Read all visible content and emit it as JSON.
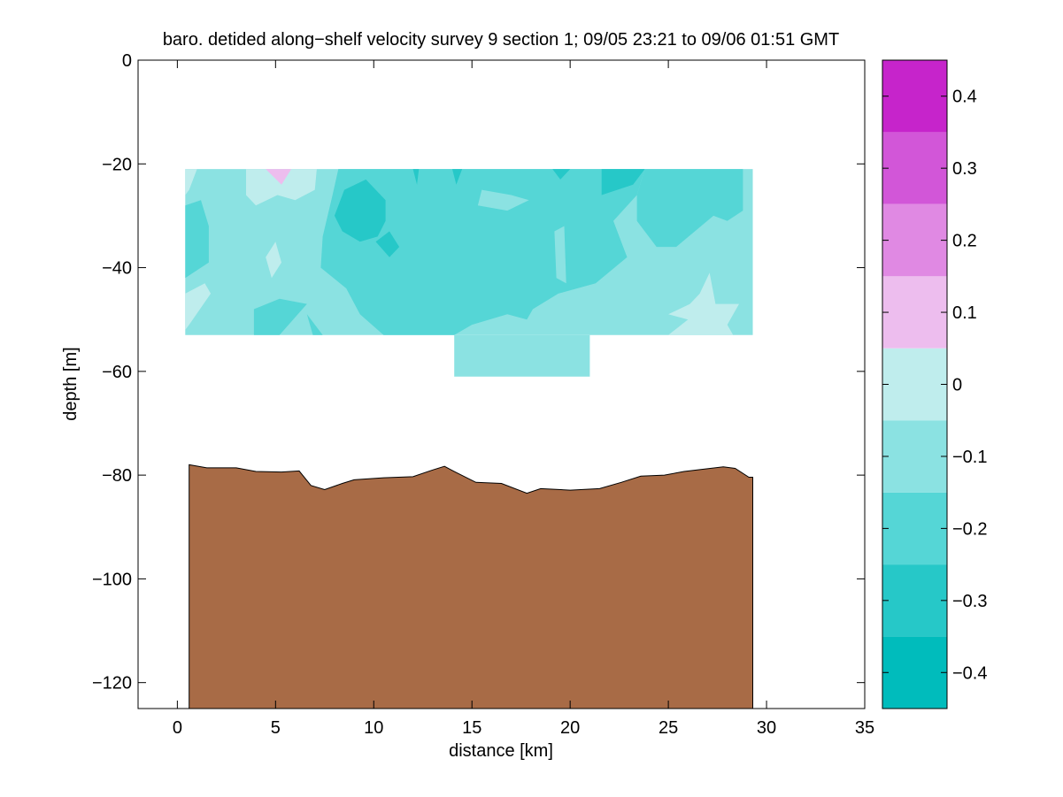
{
  "chart_data": {
    "type": "contour",
    "title": "baro. detided along−shelf velocity survey 9 section 1; 09/05 23:21 to 09/06 01:51 GMT",
    "xlabel": "distance [km]",
    "ylabel": "depth [m]",
    "xlim": [
      -2,
      35
    ],
    "ylim": [
      -125,
      0
    ],
    "xticks": [
      0,
      5,
      10,
      15,
      20,
      25,
      30,
      35
    ],
    "yticks": [
      0,
      -20,
      -40,
      -60,
      -80,
      -100,
      -120
    ],
    "xtick_labels": [
      "0",
      "5",
      "10",
      "15",
      "20",
      "25",
      "30",
      "35"
    ],
    "ytick_labels": [
      "0",
      "−20",
      "−40",
      "−60",
      "−80",
      "−100",
      "−120"
    ],
    "colorbar": {
      "limits": [
        -0.45,
        0.45
      ],
      "levels": [
        -0.45,
        -0.35,
        -0.25,
        -0.15,
        -0.05,
        0.05,
        0.15,
        0.25,
        0.35,
        0.45
      ],
      "colors": [
        "#00bcbc",
        "#26c8c8",
        "#55d6d6",
        "#8be2e2",
        "#bfeded",
        "#edbdee",
        "#e089e3",
        "#d256d8",
        "#c624cb"
      ],
      "ticks": [
        -0.4,
        -0.3,
        -0.2,
        -0.1,
        0,
        0.1,
        0.2,
        0.3,
        0.4
      ],
      "tick_labels": [
        "−0.4",
        "−0.3",
        "−0.2",
        "−0.1",
        "0",
        "0.1",
        "0.2",
        "0.3",
        "0.4"
      ]
    },
    "data_extent": {
      "main": {
        "x": [
          0.4,
          29.3
        ],
        "y": [
          -53,
          -21
        ]
      },
      "deep_block": {
        "x": [
          14.1,
          21
        ],
        "y": [
          -61,
          -53
        ]
      }
    },
    "patches": [
      {
        "level": -0.05,
        "points": [
          [
            0.4,
            -21
          ],
          [
            29.3,
            -21
          ],
          [
            29.3,
            -53
          ],
          [
            0.4,
            -53
          ]
        ]
      },
      {
        "level": -0.05,
        "points": [
          [
            14.1,
            -53
          ],
          [
            21,
            -53
          ],
          [
            21,
            -61
          ],
          [
            14.1,
            -61
          ]
        ]
      },
      {
        "level": -0.15,
        "points": [
          [
            8.2,
            -21
          ],
          [
            23.8,
            -21
          ],
          [
            23.4,
            -26
          ],
          [
            22.2,
            -31
          ],
          [
            22.9,
            -38
          ],
          [
            21.3,
            -43
          ],
          [
            19.4,
            -45
          ],
          [
            18.1,
            -48
          ],
          [
            17.8,
            -50
          ],
          [
            16.8,
            -49
          ],
          [
            15,
            -51
          ],
          [
            14.1,
            -53
          ],
          [
            10.5,
            -53
          ],
          [
            9.3,
            -49
          ],
          [
            8.6,
            -44
          ],
          [
            7.3,
            -40
          ],
          [
            7.4,
            -34
          ],
          [
            7.9,
            -26
          ]
        ]
      },
      {
        "level": -0.15,
        "points": [
          [
            23.8,
            -21
          ],
          [
            28.8,
            -21
          ],
          [
            28.8,
            -29
          ],
          [
            28,
            -31
          ],
          [
            27.3,
            -30
          ],
          [
            25.4,
            -36
          ],
          [
            24.4,
            -36
          ],
          [
            23.4,
            -31
          ],
          [
            23.4,
            -26
          ]
        ]
      },
      {
        "level": -0.15,
        "points": [
          [
            0.4,
            -28
          ],
          [
            1.2,
            -27
          ],
          [
            1.6,
            -32
          ],
          [
            1.6,
            -39
          ],
          [
            0.4,
            -42
          ]
        ]
      },
      {
        "level": -0.15,
        "points": [
          [
            3.9,
            -48
          ],
          [
            5.2,
            -46
          ],
          [
            6.6,
            -47
          ],
          [
            5.2,
            -53
          ],
          [
            3.9,
            -53
          ]
        ]
      },
      {
        "level": -0.15,
        "points": [
          [
            6.6,
            -49
          ],
          [
            7.4,
            -53
          ],
          [
            6.9,
            -53
          ]
        ]
      },
      {
        "level": -0.05,
        "points": [
          [
            15.3,
            -28
          ],
          [
            16.8,
            -29
          ],
          [
            17.9,
            -27
          ],
          [
            17,
            -26
          ],
          [
            15.5,
            -25
          ]
        ]
      },
      {
        "level": -0.05,
        "points": [
          [
            19.2,
            -33
          ],
          [
            19.7,
            -32
          ],
          [
            19.8,
            -43
          ],
          [
            19.3,
            -42
          ]
        ]
      },
      {
        "level": -0.25,
        "points": [
          [
            8.5,
            -25
          ],
          [
            9.6,
            -23
          ],
          [
            10.6,
            -27
          ],
          [
            10.6,
            -31
          ],
          [
            10.2,
            -34
          ],
          [
            9.3,
            -35
          ],
          [
            8.4,
            -33
          ],
          [
            8.0,
            -30
          ]
        ]
      },
      {
        "level": -0.25,
        "points": [
          [
            10.1,
            -35
          ],
          [
            10.8,
            -33
          ],
          [
            11.3,
            -36
          ],
          [
            10.8,
            -38
          ]
        ]
      },
      {
        "level": -0.25,
        "points": [
          [
            12.0,
            -21
          ],
          [
            12.3,
            -21
          ],
          [
            12.2,
            -24
          ]
        ]
      },
      {
        "level": -0.25,
        "points": [
          [
            14.0,
            -21
          ],
          [
            14.5,
            -21
          ],
          [
            14.2,
            -24
          ]
        ]
      },
      {
        "level": -0.25,
        "points": [
          [
            19.1,
            -21
          ],
          [
            20.0,
            -21
          ],
          [
            19.5,
            -23
          ]
        ]
      },
      {
        "level": -0.25,
        "points": [
          [
            21.6,
            -21
          ],
          [
            23.8,
            -21
          ],
          [
            23.2,
            -24
          ],
          [
            21.6,
            -26
          ]
        ]
      },
      {
        "level": 0.05,
        "points": [
          [
            0.4,
            -21
          ],
          [
            1.0,
            -21
          ],
          [
            0.6,
            -25
          ],
          [
            0.4,
            -26
          ]
        ]
      },
      {
        "level": 0.05,
        "points": [
          [
            3.5,
            -21
          ],
          [
            7.1,
            -21
          ],
          [
            7.0,
            -25
          ],
          [
            6.0,
            -27
          ],
          [
            5.1,
            -26
          ],
          [
            4.0,
            -28
          ],
          [
            3.5,
            -26
          ]
        ]
      },
      {
        "level": 0.15,
        "points": [
          [
            4.5,
            -21
          ],
          [
            5.8,
            -21
          ],
          [
            5.3,
            -24
          ]
        ]
      },
      {
        "level": 0.05,
        "points": [
          [
            4.5,
            -38
          ],
          [
            5.0,
            -35
          ],
          [
            5.3,
            -39
          ],
          [
            4.8,
            -42
          ]
        ]
      },
      {
        "level": 0.05,
        "points": [
          [
            0.4,
            -45
          ],
          [
            1.4,
            -43
          ],
          [
            1.7,
            -45
          ],
          [
            0.6,
            -51
          ],
          [
            0.4,
            -52
          ]
        ]
      },
      {
        "level": 0.05,
        "points": [
          [
            25.0,
            -53
          ],
          [
            26.0,
            -50
          ],
          [
            25.0,
            -49
          ],
          [
            26.1,
            -47
          ],
          [
            26.6,
            -45
          ],
          [
            27.1,
            -41
          ],
          [
            27.4,
            -47
          ],
          [
            28.6,
            -47
          ],
          [
            28.0,
            -51
          ],
          [
            28.3,
            -53
          ]
        ]
      }
    ],
    "bottom_profile": [
      [
        0.6,
        -78
      ],
      [
        1.5,
        -78.6
      ],
      [
        3,
        -78.6
      ],
      [
        4,
        -79.3
      ],
      [
        5.3,
        -79.4
      ],
      [
        6.2,
        -79.2
      ],
      [
        6.8,
        -82
      ],
      [
        7.5,
        -82.8
      ],
      [
        8.4,
        -81.6
      ],
      [
        9.0,
        -80.9
      ],
      [
        10.5,
        -80.5
      ],
      [
        12,
        -80.3
      ],
      [
        13,
        -79
      ],
      [
        13.6,
        -78.3
      ],
      [
        14.2,
        -79.5
      ],
      [
        15.2,
        -81.4
      ],
      [
        16.5,
        -81.6
      ],
      [
        17.8,
        -83.5
      ],
      [
        18.5,
        -82.6
      ],
      [
        20,
        -82.9
      ],
      [
        21.5,
        -82.6
      ],
      [
        22.6,
        -81.4
      ],
      [
        23.6,
        -80.2
      ],
      [
        24.8,
        -80.0
      ],
      [
        25.8,
        -79.3
      ],
      [
        27.8,
        -78.4
      ],
      [
        28.4,
        -78.7
      ],
      [
        29.1,
        -80.4
      ],
      [
        29.3,
        -80.4
      ]
    ],
    "bottom_color": "#a86b46",
    "grid": false,
    "legend": "colorbar-right"
  }
}
